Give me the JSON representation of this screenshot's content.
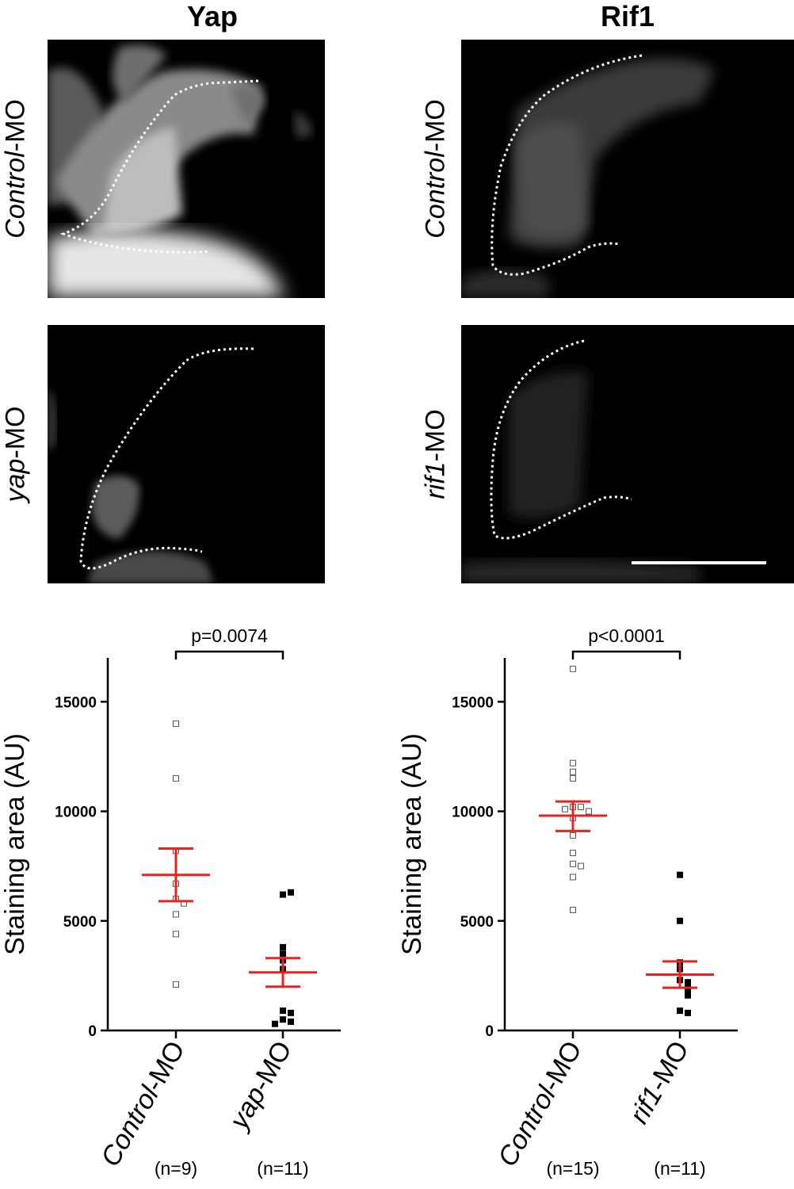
{
  "columns": [
    {
      "title": "Yap"
    },
    {
      "title": "Rif1"
    }
  ],
  "micro_labels": {
    "yap_control": {
      "italic": "Control",
      "suffix": "-MO"
    },
    "yap_mo": {
      "italic": "yap",
      "suffix": "-MO"
    },
    "rif1_control": {
      "italic": "Control",
      "suffix": "-MO"
    },
    "rif1_mo": {
      "italic": "rif1",
      "suffix": "-MO"
    }
  },
  "colors": {
    "mean_sem": "#e8231e",
    "control_marker": "#ffffff",
    "mo_marker": "#000000"
  },
  "chart_data": [
    {
      "type": "scatter",
      "ylabel": "Staining area (AU)",
      "ylim": [
        0,
        17000
      ],
      "yticks": [
        0,
        5000,
        10000,
        15000
      ],
      "categories": [
        "Control-MO",
        "yap-MO"
      ],
      "category_italic": [
        "Control",
        "yap"
      ],
      "category_suffix": [
        "-MO",
        "-MO"
      ],
      "n_labels": [
        "(n=9)",
        "(n=11)"
      ],
      "significance": "p=0.0074",
      "groups": [
        {
          "marker": "open-square",
          "values": [
            14000,
            11500,
            8200,
            6700,
            6000,
            5800,
            5300,
            4400,
            2100
          ],
          "mean": 7100,
          "sem_low": 5900,
          "sem_high": 8300
        },
        {
          "marker": "filled-square",
          "values": [
            6200,
            6300,
            3800,
            3500,
            3200,
            2800,
            900,
            800,
            500,
            400,
            300
          ],
          "mean": 2650,
          "sem_low": 2000,
          "sem_high": 3300
        }
      ]
    },
    {
      "type": "scatter",
      "ylabel": "Staining area (AU)",
      "ylim": [
        0,
        17000
      ],
      "yticks": [
        0,
        5000,
        10000,
        15000
      ],
      "categories": [
        "Control-MO",
        "rif1-MO"
      ],
      "category_italic": [
        "Control",
        "rif1"
      ],
      "category_suffix": [
        "-MO",
        "-MO"
      ],
      "n_labels": [
        "(n=15)",
        "(n=11)"
      ],
      "significance": "p<0.0001",
      "groups": [
        {
          "marker": "open-square",
          "values": [
            16500,
            12200,
            11800,
            11500,
            10200,
            10200,
            10100,
            10000,
            9700,
            8900,
            8100,
            7600,
            7500,
            7000,
            5500
          ],
          "mean": 9800,
          "sem_low": 9100,
          "sem_high": 10450
        },
        {
          "marker": "filled-square",
          "values": [
            7100,
            5000,
            3100,
            2800,
            2300,
            2200,
            2000,
            1800,
            1600,
            900,
            800
          ],
          "mean": 2550,
          "sem_low": 1950,
          "sem_high": 3150
        }
      ]
    }
  ]
}
